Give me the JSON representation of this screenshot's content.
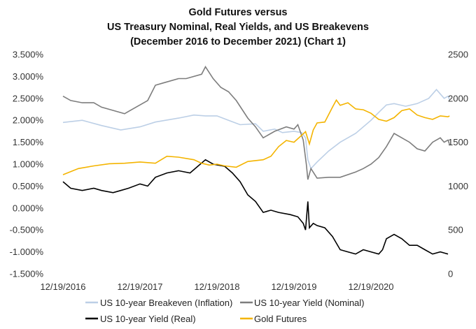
{
  "chart_data": {
    "type": "line",
    "title": [
      "Gold Futures versus",
      "US Treasury Nominal,  Real Yields,  and US Breakevens",
      "(December 2016 to December 2021) (Chart 1)"
    ],
    "x_tick_labels": [
      "12/19/2016",
      "12/19/2017",
      "12/19/2018",
      "12/19/2019",
      "12/19/2020"
    ],
    "x_range": [
      0,
      5.1
    ],
    "y_left": {
      "min": -1.5,
      "max": 3.5,
      "tick_values": [
        3.5,
        3.0,
        2.5,
        2.0,
        1.5,
        1.0,
        0.5,
        0.0,
        -0.5,
        -1.0,
        -1.5
      ],
      "tick_labels": [
        "3.500%",
        "3.000%",
        "2.500%",
        "2.000%",
        "1.500%",
        "1.000%",
        "0.500%",
        "0.000%",
        "-0.500%",
        "-1.000%",
        "-1.500%"
      ]
    },
    "y_right": {
      "min": 0,
      "max": 2500,
      "tick_values": [
        2500,
        2000,
        1500,
        1000,
        500,
        0
      ],
      "tick_labels": [
        "2500",
        "2000",
        "1500",
        "1000",
        "500",
        "0"
      ]
    },
    "series": [
      {
        "name": "US 10-year Breakeven (Inflation)",
        "axis": "left",
        "color": "#bccfe6",
        "points": [
          [
            0,
            1.95
          ],
          [
            0.25,
            2.0
          ],
          [
            0.5,
            1.88
          ],
          [
            0.75,
            1.78
          ],
          [
            1.0,
            1.85
          ],
          [
            1.2,
            1.96
          ],
          [
            1.5,
            2.05
          ],
          [
            1.7,
            2.12
          ],
          [
            1.85,
            2.1
          ],
          [
            2.0,
            2.1
          ],
          [
            2.15,
            2.0
          ],
          [
            2.3,
            1.9
          ],
          [
            2.5,
            1.92
          ],
          [
            2.6,
            1.75
          ],
          [
            2.75,
            1.8
          ],
          [
            2.85,
            1.72
          ],
          [
            3.0,
            1.75
          ],
          [
            3.1,
            1.72
          ],
          [
            3.15,
            1.6
          ],
          [
            3.18,
            1.1
          ],
          [
            3.22,
            0.9
          ],
          [
            3.3,
            1.05
          ],
          [
            3.45,
            1.3
          ],
          [
            3.6,
            1.5
          ],
          [
            3.8,
            1.7
          ],
          [
            4.0,
            2.0
          ],
          [
            4.1,
            2.18
          ],
          [
            4.2,
            2.35
          ],
          [
            4.3,
            2.38
          ],
          [
            4.45,
            2.32
          ],
          [
            4.6,
            2.38
          ],
          [
            4.75,
            2.5
          ],
          [
            4.85,
            2.7
          ],
          [
            4.95,
            2.5
          ],
          [
            5.0,
            2.55
          ],
          [
            5.02,
            2.47
          ]
        ]
      },
      {
        "name": "US 10-year Yield (Nominal)",
        "axis": "left",
        "color": "#7d7d7d",
        "points": [
          [
            0,
            2.55
          ],
          [
            0.1,
            2.45
          ],
          [
            0.25,
            2.4
          ],
          [
            0.4,
            2.4
          ],
          [
            0.5,
            2.3
          ],
          [
            0.6,
            2.25
          ],
          [
            0.7,
            2.2
          ],
          [
            0.8,
            2.15
          ],
          [
            0.85,
            2.2
          ],
          [
            1.0,
            2.35
          ],
          [
            1.1,
            2.45
          ],
          [
            1.2,
            2.8
          ],
          [
            1.3,
            2.85
          ],
          [
            1.5,
            2.95
          ],
          [
            1.6,
            2.95
          ],
          [
            1.8,
            3.05
          ],
          [
            1.85,
            3.22
          ],
          [
            1.95,
            2.95
          ],
          [
            2.05,
            2.75
          ],
          [
            2.15,
            2.65
          ],
          [
            2.25,
            2.45
          ],
          [
            2.4,
            2.05
          ],
          [
            2.5,
            1.85
          ],
          [
            2.6,
            1.6
          ],
          [
            2.75,
            1.75
          ],
          [
            2.9,
            1.85
          ],
          [
            3.0,
            1.8
          ],
          [
            3.05,
            1.9
          ],
          [
            3.12,
            1.55
          ],
          [
            3.16,
            1.0
          ],
          [
            3.18,
            0.65
          ],
          [
            3.22,
            0.9
          ],
          [
            3.3,
            0.68
          ],
          [
            3.45,
            0.7
          ],
          [
            3.6,
            0.7
          ],
          [
            3.8,
            0.82
          ],
          [
            3.9,
            0.9
          ],
          [
            4.0,
            1.0
          ],
          [
            4.1,
            1.15
          ],
          [
            4.2,
            1.4
          ],
          [
            4.3,
            1.7
          ],
          [
            4.4,
            1.6
          ],
          [
            4.5,
            1.5
          ],
          [
            4.6,
            1.35
          ],
          [
            4.7,
            1.3
          ],
          [
            4.8,
            1.5
          ],
          [
            4.9,
            1.6
          ],
          [
            4.95,
            1.5
          ],
          [
            5.0,
            1.55
          ],
          [
            5.02,
            1.45
          ]
        ]
      },
      {
        "name": "US 10-year Yield (Real)",
        "axis": "left",
        "color": "#000000",
        "points": [
          [
            0,
            0.6
          ],
          [
            0.1,
            0.45
          ],
          [
            0.25,
            0.4
          ],
          [
            0.4,
            0.45
          ],
          [
            0.5,
            0.4
          ],
          [
            0.65,
            0.35
          ],
          [
            0.75,
            0.4
          ],
          [
            0.85,
            0.45
          ],
          [
            1.0,
            0.55
          ],
          [
            1.1,
            0.5
          ],
          [
            1.2,
            0.7
          ],
          [
            1.35,
            0.8
          ],
          [
            1.5,
            0.85
          ],
          [
            1.65,
            0.8
          ],
          [
            1.75,
            0.95
          ],
          [
            1.85,
            1.1
          ],
          [
            1.95,
            1.0
          ],
          [
            2.1,
            0.95
          ],
          [
            2.2,
            0.8
          ],
          [
            2.3,
            0.6
          ],
          [
            2.4,
            0.3
          ],
          [
            2.5,
            0.15
          ],
          [
            2.6,
            -0.1
          ],
          [
            2.7,
            -0.05
          ],
          [
            2.8,
            -0.1
          ],
          [
            2.95,
            -0.15
          ],
          [
            3.05,
            -0.2
          ],
          [
            3.12,
            -0.35
          ],
          [
            3.15,
            -0.5
          ],
          [
            3.18,
            0.15
          ],
          [
            3.2,
            -0.45
          ],
          [
            3.25,
            -0.35
          ],
          [
            3.3,
            -0.4
          ],
          [
            3.4,
            -0.45
          ],
          [
            3.5,
            -0.65
          ],
          [
            3.6,
            -0.95
          ],
          [
            3.7,
            -1.0
          ],
          [
            3.8,
            -1.05
          ],
          [
            3.9,
            -0.95
          ],
          [
            4.0,
            -1.0
          ],
          [
            4.1,
            -1.05
          ],
          [
            4.15,
            -0.95
          ],
          [
            4.2,
            -0.7
          ],
          [
            4.3,
            -0.6
          ],
          [
            4.4,
            -0.7
          ],
          [
            4.5,
            -0.85
          ],
          [
            4.6,
            -0.85
          ],
          [
            4.7,
            -0.95
          ],
          [
            4.8,
            -1.05
          ],
          [
            4.9,
            -1.0
          ],
          [
            5.0,
            -1.05
          ]
        ]
      },
      {
        "name": "Gold Futures",
        "axis": "right",
        "color": "#f4b400",
        "points": [
          [
            0,
            1130
          ],
          [
            0.2,
            1200
          ],
          [
            0.4,
            1230
          ],
          [
            0.6,
            1255
          ],
          [
            0.8,
            1260
          ],
          [
            1.0,
            1275
          ],
          [
            1.2,
            1260
          ],
          [
            1.35,
            1340
          ],
          [
            1.5,
            1330
          ],
          [
            1.7,
            1300
          ],
          [
            1.8,
            1260
          ],
          [
            1.9,
            1240
          ],
          [
            2.0,
            1250
          ],
          [
            2.1,
            1230
          ],
          [
            2.25,
            1215
          ],
          [
            2.4,
            1280
          ],
          [
            2.6,
            1300
          ],
          [
            2.7,
            1340
          ],
          [
            2.8,
            1450
          ],
          [
            2.9,
            1520
          ],
          [
            3.0,
            1500
          ],
          [
            3.1,
            1580
          ],
          [
            3.15,
            1620
          ],
          [
            3.2,
            1480
          ],
          [
            3.25,
            1640
          ],
          [
            3.3,
            1720
          ],
          [
            3.4,
            1730
          ],
          [
            3.5,
            1900
          ],
          [
            3.55,
            1980
          ],
          [
            3.6,
            1920
          ],
          [
            3.7,
            1950
          ],
          [
            3.8,
            1880
          ],
          [
            3.9,
            1870
          ],
          [
            4.0,
            1830
          ],
          [
            4.1,
            1760
          ],
          [
            4.2,
            1740
          ],
          [
            4.3,
            1780
          ],
          [
            4.4,
            1860
          ],
          [
            4.5,
            1880
          ],
          [
            4.6,
            1810
          ],
          [
            4.7,
            1780
          ],
          [
            4.8,
            1760
          ],
          [
            4.9,
            1800
          ],
          [
            5.0,
            1790
          ],
          [
            5.02,
            1800
          ]
        ]
      }
    ],
    "legend": {
      "placement": "bottom",
      "entries": [
        {
          "label": "US 10-year Breakeven (Inflation)",
          "color": "#bccfe6"
        },
        {
          "label": "US 10-year Yield (Nominal)",
          "color": "#7d7d7d"
        },
        {
          "label": "US 10-year Yield (Real)",
          "color": "#000000"
        },
        {
          "label": "Gold Futures",
          "color": "#f4b400"
        }
      ]
    },
    "grid": false
  }
}
